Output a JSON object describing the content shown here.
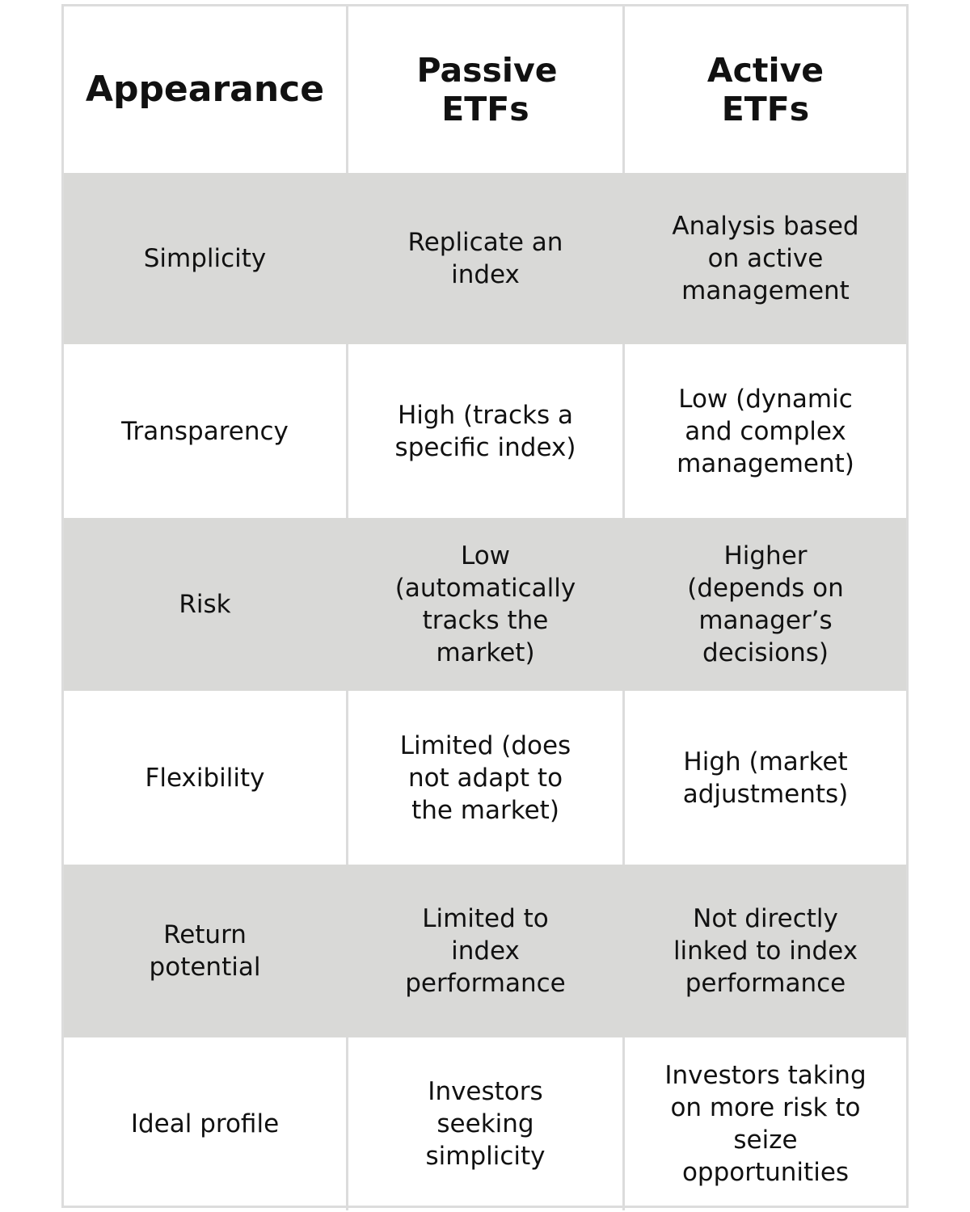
{
  "table": {
    "headers": [
      "Appearance",
      "Passive ETFs",
      "Active ETFs"
    ],
    "rows": [
      {
        "aspect": "Simplicity",
        "passive": "Replicate an index",
        "active": "Analysis based on active management"
      },
      {
        "aspect": "Transparency",
        "passive": "High (tracks a specific index)",
        "active": "Low (dynamic and complex management)"
      },
      {
        "aspect": "Risk",
        "passive": "Low (automatically tracks the market)",
        "active": "Higher (depends on manager’s decisions)"
      },
      {
        "aspect": "Flexibility",
        "passive": "Limited (does not adapt to the market)",
        "active": "High (market adjustments)"
      },
      {
        "aspect": "Return potential",
        "passive": "Limited to index performance",
        "active": "Not directly linked to index performance"
      },
      {
        "aspect": "Ideal profile",
        "passive": "Investors seeking simplicity",
        "active": "Investors taking on more risk to seize opportunities"
      }
    ]
  },
  "colors": {
    "shaded_row": "#d9d9d7",
    "border": "#dcdcdc",
    "text": "#111111"
  }
}
